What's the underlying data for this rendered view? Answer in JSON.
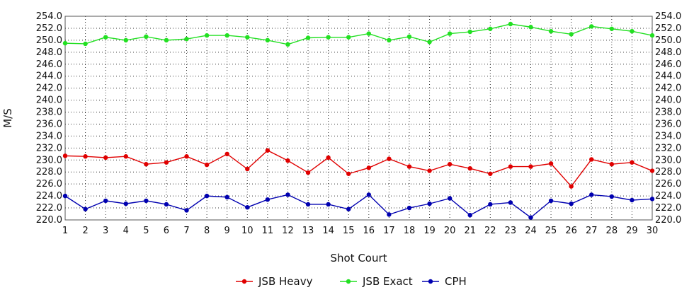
{
  "chart_data": {
    "type": "line",
    "xlabel": "Shot Court",
    "ylabel": "M/S",
    "x": [
      1,
      2,
      3,
      4,
      5,
      6,
      7,
      8,
      9,
      10,
      11,
      12,
      13,
      14,
      15,
      16,
      17,
      18,
      19,
      20,
      21,
      22,
      23,
      24,
      25,
      26,
      27,
      28,
      29,
      30
    ],
    "x_tick_labels": [
      "1",
      "2",
      "3",
      "4",
      "5",
      "6",
      "7",
      "8",
      "9",
      "10",
      "11",
      "12",
      "13",
      "14",
      "15",
      "16",
      "17",
      "18",
      "19",
      "20",
      "21",
      "22",
      "23",
      "24",
      "25",
      "26",
      "27",
      "28",
      "29",
      "30"
    ],
    "ylim": [
      220,
      254
    ],
    "y_tick_labels": [
      "220.0",
      "222.0",
      "224.0",
      "226.0",
      "228.0",
      "230.0",
      "232.0",
      "234.0",
      "236.0",
      "238.0",
      "240.0",
      "242.0",
      "244.0",
      "246.0",
      "248.0",
      "250.0",
      "252.0",
      "254.0"
    ],
    "grid": true,
    "legend_position": "bottom",
    "series": [
      {
        "name": "JSB Heavy",
        "color": "#e00000",
        "values": [
          230.7,
          230.6,
          230.4,
          230.6,
          229.3,
          229.6,
          230.6,
          229.2,
          231.0,
          228.5,
          231.6,
          229.9,
          227.9,
          230.4,
          227.7,
          228.7,
          230.2,
          228.9,
          228.2,
          229.3,
          228.6,
          227.7,
          228.9,
          228.9,
          229.4,
          225.6,
          230.1,
          229.3,
          229.6,
          228.2
        ]
      },
      {
        "name": "JSB Exact",
        "color": "#22e022",
        "values": [
          249.5,
          249.4,
          250.5,
          250.0,
          250.6,
          250.0,
          250.2,
          250.8,
          250.8,
          250.5,
          250.0,
          249.3,
          250.4,
          250.5,
          250.5,
          251.1,
          250.0,
          250.6,
          249.7,
          251.1,
          251.4,
          251.9,
          252.7,
          252.2,
          251.5,
          251.0,
          252.3,
          251.9,
          251.5,
          250.8
        ]
      },
      {
        "name": "CPH",
        "color": "#0000b0",
        "values": [
          224.0,
          221.8,
          223.2,
          222.7,
          223.2,
          222.6,
          221.6,
          224.0,
          223.8,
          222.1,
          223.4,
          224.2,
          222.6,
          222.6,
          221.8,
          224.2,
          220.9,
          222.0,
          222.7,
          223.6,
          220.8,
          222.6,
          222.9,
          220.4,
          223.2,
          222.7,
          224.2,
          223.9,
          223.3,
          223.5
        ]
      }
    ]
  }
}
